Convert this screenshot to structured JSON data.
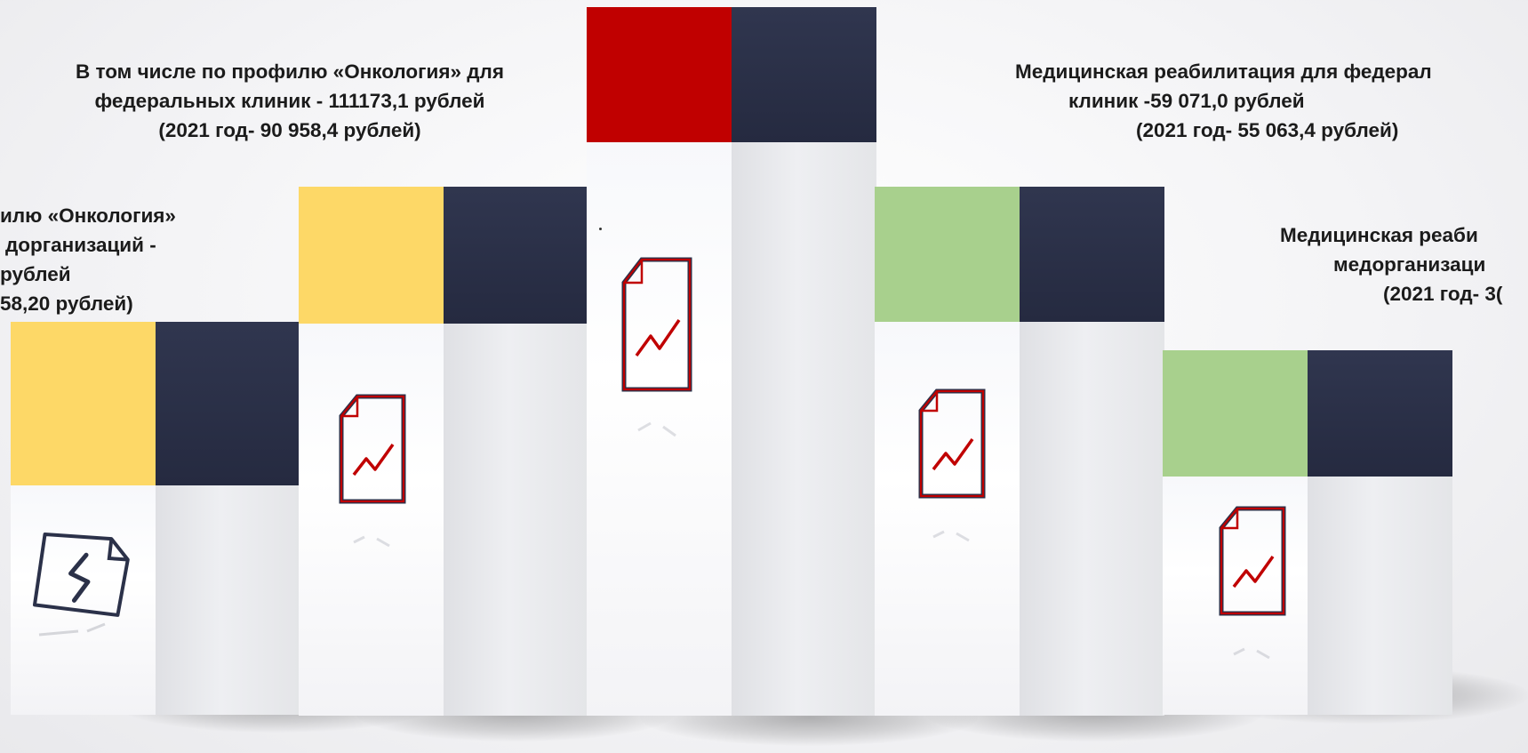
{
  "columns": [
    {
      "id": "col1",
      "accent_color": "#fdd867",
      "icon": "broken-document-icon",
      "caption_lines": [
        "илю «Онкология»",
        "дорганизаций -",
        "рублей",
        "58,20 рублей)"
      ]
    },
    {
      "id": "col2",
      "accent_color": "#fdd867",
      "icon": "document-chart-icon",
      "caption_lines": [
        "В том числе по профилю «Онкология»  для",
        "федеральных клиник - 111173,1 рублей",
        "(2021 год- 90 958,4 рублей)"
      ]
    },
    {
      "id": "col3",
      "accent_color": "#c00000",
      "icon": "document-chart-icon",
      "caption_lines": []
    },
    {
      "id": "col4",
      "accent_color": "#a8d08d",
      "icon": "document-chart-icon",
      "caption_lines": [
        "Медицинская реабилитация для федерал",
        "клиник -59 071,0 рублей",
        "(2021 год- 55 063,4 рублей)"
      ]
    },
    {
      "id": "col5",
      "accent_color": "#a8d08d",
      "icon": "document-chart-icon",
      "caption_lines": [
        "Медицинская реаби",
        "медорганизаци",
        "(2021 год- 3("
      ]
    }
  ]
}
